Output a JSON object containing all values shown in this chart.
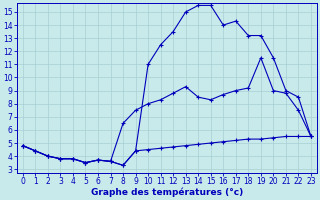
{
  "title": "Graphe des températures (°c)",
  "bg_color": "#c8eaea",
  "grid_color": "#a8d0d4",
  "line_color": "#0000bb",
  "xlim": [
    -0.5,
    23.5
  ],
  "ylim_min": 2.7,
  "ylim_max": 15.7,
  "xticks": [
    0,
    1,
    2,
    3,
    4,
    5,
    6,
    7,
    8,
    9,
    10,
    11,
    12,
    13,
    14,
    15,
    16,
    17,
    18,
    19,
    20,
    21,
    22,
    23
  ],
  "yticks": [
    3,
    4,
    5,
    6,
    7,
    8,
    9,
    10,
    11,
    12,
    13,
    14,
    15
  ],
  "line1_x": [
    0,
    1,
    2,
    3,
    4,
    5,
    6,
    7,
    8,
    9,
    10,
    11,
    12,
    13,
    14,
    15,
    16,
    17,
    18,
    19,
    20,
    21,
    22,
    23
  ],
  "line1_y": [
    4.8,
    4.4,
    4.0,
    3.8,
    3.8,
    3.5,
    3.7,
    3.6,
    3.3,
    4.4,
    4.5,
    4.6,
    4.7,
    4.8,
    4.9,
    5.0,
    5.1,
    5.2,
    5.3,
    5.3,
    5.4,
    5.5,
    5.5,
    5.5
  ],
  "line2_x": [
    0,
    1,
    2,
    3,
    4,
    5,
    6,
    7,
    8,
    9,
    10,
    11,
    12,
    13,
    14,
    15,
    16,
    17,
    18,
    19,
    20,
    21,
    22,
    23
  ],
  "line2_y": [
    4.8,
    4.4,
    4.0,
    3.8,
    3.8,
    3.5,
    3.7,
    3.6,
    6.5,
    7.5,
    8.0,
    8.3,
    8.8,
    9.3,
    8.5,
    8.3,
    8.7,
    9.0,
    9.2,
    11.5,
    9.0,
    8.8,
    7.5,
    5.5
  ],
  "line3_x": [
    0,
    1,
    2,
    3,
    4,
    5,
    6,
    7,
    8,
    9,
    10,
    11,
    12,
    13,
    14,
    15,
    16,
    17,
    18,
    19,
    20,
    21,
    22,
    23
  ],
  "line3_y": [
    4.8,
    4.4,
    4.0,
    3.8,
    3.8,
    3.5,
    3.7,
    3.6,
    3.3,
    4.4,
    11.0,
    12.5,
    13.5,
    15.0,
    15.5,
    15.5,
    14.0,
    14.3,
    13.2,
    13.2,
    11.5,
    9.0,
    8.5,
    5.5
  ],
  "xlabel_fontsize": 6.5,
  "tick_fontsize": 5.5
}
